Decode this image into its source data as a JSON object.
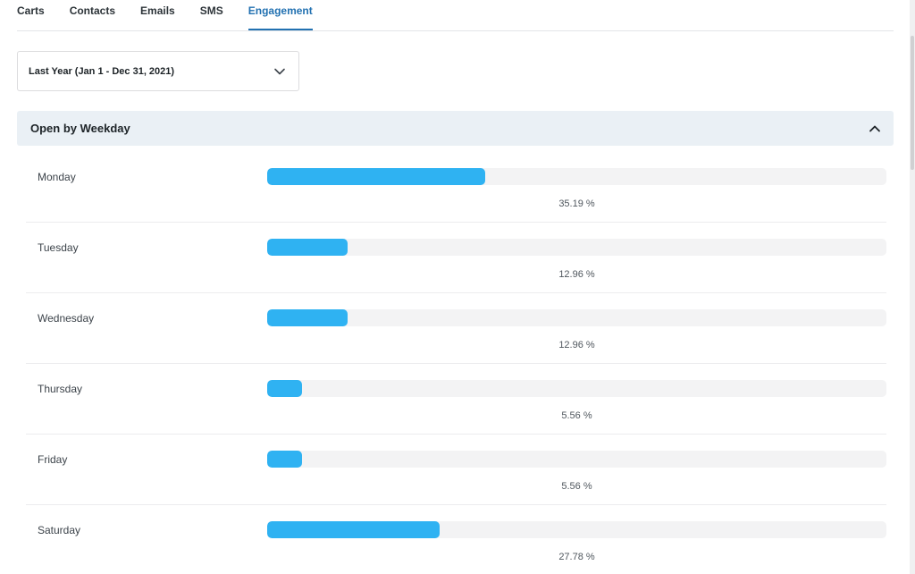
{
  "tabs": [
    {
      "label": "Carts",
      "active": false
    },
    {
      "label": "Contacts",
      "active": false
    },
    {
      "label": "Emails",
      "active": false
    },
    {
      "label": "SMS",
      "active": false
    },
    {
      "label": "Engagement",
      "active": true
    }
  ],
  "date_select": {
    "value": "Last Year (Jan 1 - Dec 31, 2021)",
    "icon": "chevron-down-icon"
  },
  "panel": {
    "title": "Open by Weekday",
    "icon": "chevron-up-icon",
    "rows": [
      {
        "day": "Monday",
        "percent": 35.19,
        "percent_label": "35.19 %"
      },
      {
        "day": "Tuesday",
        "percent": 12.96,
        "percent_label": "12.96 %"
      },
      {
        "day": "Wednesday",
        "percent": 12.96,
        "percent_label": "12.96 %"
      },
      {
        "day": "Thursday",
        "percent": 5.56,
        "percent_label": "5.56 %"
      },
      {
        "day": "Friday",
        "percent": 5.56,
        "percent_label": "5.56 %"
      },
      {
        "day": "Saturday",
        "percent": 27.78,
        "percent_label": "27.78 %"
      }
    ]
  },
  "colors": {
    "accent": "#2271b1",
    "bar_fill": "#2fb2f2",
    "bar_track": "#f3f3f4",
    "panel_header_bg": "#eaf0f5"
  }
}
